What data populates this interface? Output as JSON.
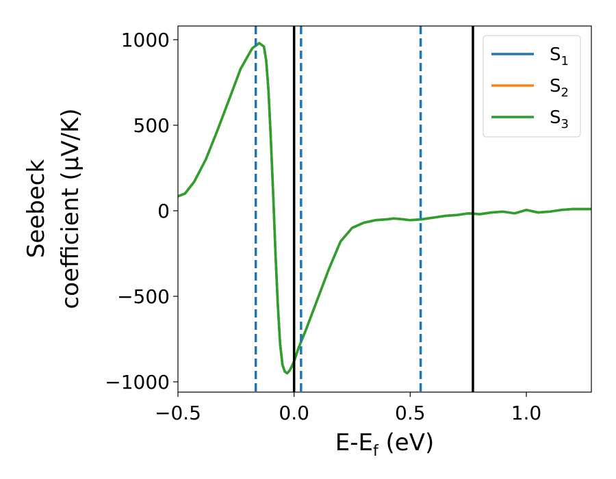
{
  "chart_data": {
    "type": "line",
    "title": "",
    "xlabel": {
      "main": "E-E",
      "sub": "f",
      "tail": " (eV)"
    },
    "ylabel": {
      "line1": "Seebeck",
      "line2": "coefficient  (μV/K)"
    },
    "xlim": [
      -0.5,
      1.28
    ],
    "ylim": [
      -1060,
      1080
    ],
    "xticks": [
      -0.5,
      0.0,
      0.5,
      1.0
    ],
    "xtick_labels": [
      "−0.5",
      "0.0",
      "0.5",
      "1.0"
    ],
    "yticks": [
      -1000,
      -500,
      0,
      500,
      1000
    ],
    "ytick_labels": [
      "−1000",
      "−500",
      "0",
      "500",
      "1000"
    ],
    "grid": false,
    "legend_position": "top-right",
    "series": [
      {
        "name": "S",
        "sub": "1",
        "color": "#1f77b4",
        "x": [
          -0.5,
          -0.47,
          -0.43,
          -0.38,
          -0.33,
          -0.28,
          -0.23,
          -0.18,
          -0.15,
          -0.13,
          -0.12,
          -0.11,
          -0.1,
          -0.09,
          -0.08,
          -0.07,
          -0.06,
          -0.05,
          -0.04,
          -0.03,
          -0.02,
          -0.01,
          0.0,
          0.02,
          0.05,
          0.1,
          0.15,
          0.2,
          0.25,
          0.3,
          0.35,
          0.4,
          0.43,
          0.47,
          0.5,
          0.55,
          0.6,
          0.65,
          0.7,
          0.75,
          0.8,
          0.85,
          0.9,
          0.95,
          1.0,
          1.05,
          1.1,
          1.15,
          1.2,
          1.28
        ],
        "values": [
          85,
          100,
          170,
          300,
          470,
          650,
          830,
          950,
          980,
          960,
          880,
          700,
          420,
          100,
          -250,
          -550,
          -780,
          -900,
          -940,
          -950,
          -935,
          -910,
          -880,
          -800,
          -700,
          -520,
          -340,
          -180,
          -100,
          -70,
          -55,
          -50,
          -45,
          -50,
          -55,
          -50,
          -40,
          -30,
          -25,
          -15,
          -20,
          -10,
          -5,
          -15,
          5,
          -10,
          -5,
          5,
          10,
          10
        ]
      },
      {
        "name": "S",
        "sub": "2",
        "color": "#ff7f0e",
        "x": [
          -0.5,
          -0.47,
          -0.43,
          -0.38,
          -0.33,
          -0.28,
          -0.23,
          -0.18,
          -0.15,
          -0.13,
          -0.12,
          -0.11,
          -0.1,
          -0.09,
          -0.08,
          -0.07,
          -0.06,
          -0.05,
          -0.04,
          -0.03,
          -0.02,
          -0.01,
          0.0,
          0.02,
          0.05,
          0.1,
          0.15,
          0.2,
          0.25,
          0.3,
          0.35,
          0.4,
          0.43,
          0.47,
          0.5,
          0.55,
          0.6,
          0.65,
          0.7,
          0.75,
          0.8,
          0.85,
          0.9,
          0.95,
          1.0,
          1.05,
          1.1,
          1.15,
          1.2,
          1.28
        ],
        "values": [
          85,
          100,
          170,
          300,
          470,
          650,
          830,
          950,
          980,
          960,
          880,
          700,
          420,
          100,
          -250,
          -550,
          -780,
          -900,
          -940,
          -950,
          -935,
          -910,
          -880,
          -800,
          -700,
          -520,
          -340,
          -180,
          -100,
          -70,
          -55,
          -50,
          -45,
          -50,
          -55,
          -50,
          -40,
          -30,
          -25,
          -15,
          -20,
          -10,
          -5,
          -15,
          5,
          -10,
          -5,
          5,
          10,
          10
        ]
      },
      {
        "name": "S",
        "sub": "3",
        "color": "#2ca02c",
        "x": [
          -0.5,
          -0.47,
          -0.43,
          -0.38,
          -0.33,
          -0.28,
          -0.23,
          -0.18,
          -0.15,
          -0.13,
          -0.12,
          -0.11,
          -0.1,
          -0.09,
          -0.08,
          -0.07,
          -0.06,
          -0.05,
          -0.04,
          -0.03,
          -0.02,
          -0.01,
          0.0,
          0.02,
          0.05,
          0.1,
          0.15,
          0.2,
          0.25,
          0.3,
          0.35,
          0.4,
          0.43,
          0.47,
          0.5,
          0.55,
          0.6,
          0.65,
          0.7,
          0.75,
          0.8,
          0.85,
          0.9,
          0.95,
          1.0,
          1.05,
          1.1,
          1.15,
          1.2,
          1.28
        ],
        "values": [
          85,
          100,
          170,
          300,
          470,
          650,
          830,
          950,
          980,
          960,
          880,
          700,
          420,
          100,
          -250,
          -550,
          -780,
          -900,
          -940,
          -950,
          -935,
          -910,
          -880,
          -800,
          -700,
          -520,
          -340,
          -180,
          -100,
          -70,
          -55,
          -50,
          -45,
          -50,
          -55,
          -50,
          -40,
          -30,
          -25,
          -15,
          -20,
          -10,
          -5,
          -15,
          5,
          -10,
          -5,
          5,
          10,
          10
        ]
      }
    ],
    "vlines": [
      {
        "x": -0.165,
        "style": "dashed",
        "color": "#1f77b4"
      },
      {
        "x": 0.03,
        "style": "dashed",
        "color": "#1f77b4"
      },
      {
        "x": 0.545,
        "style": "dashed",
        "color": "#1f77b4"
      },
      {
        "x": 0.0,
        "style": "solid",
        "color": "#000000"
      },
      {
        "x": 0.77,
        "style": "solid",
        "color": "#000000"
      }
    ]
  }
}
